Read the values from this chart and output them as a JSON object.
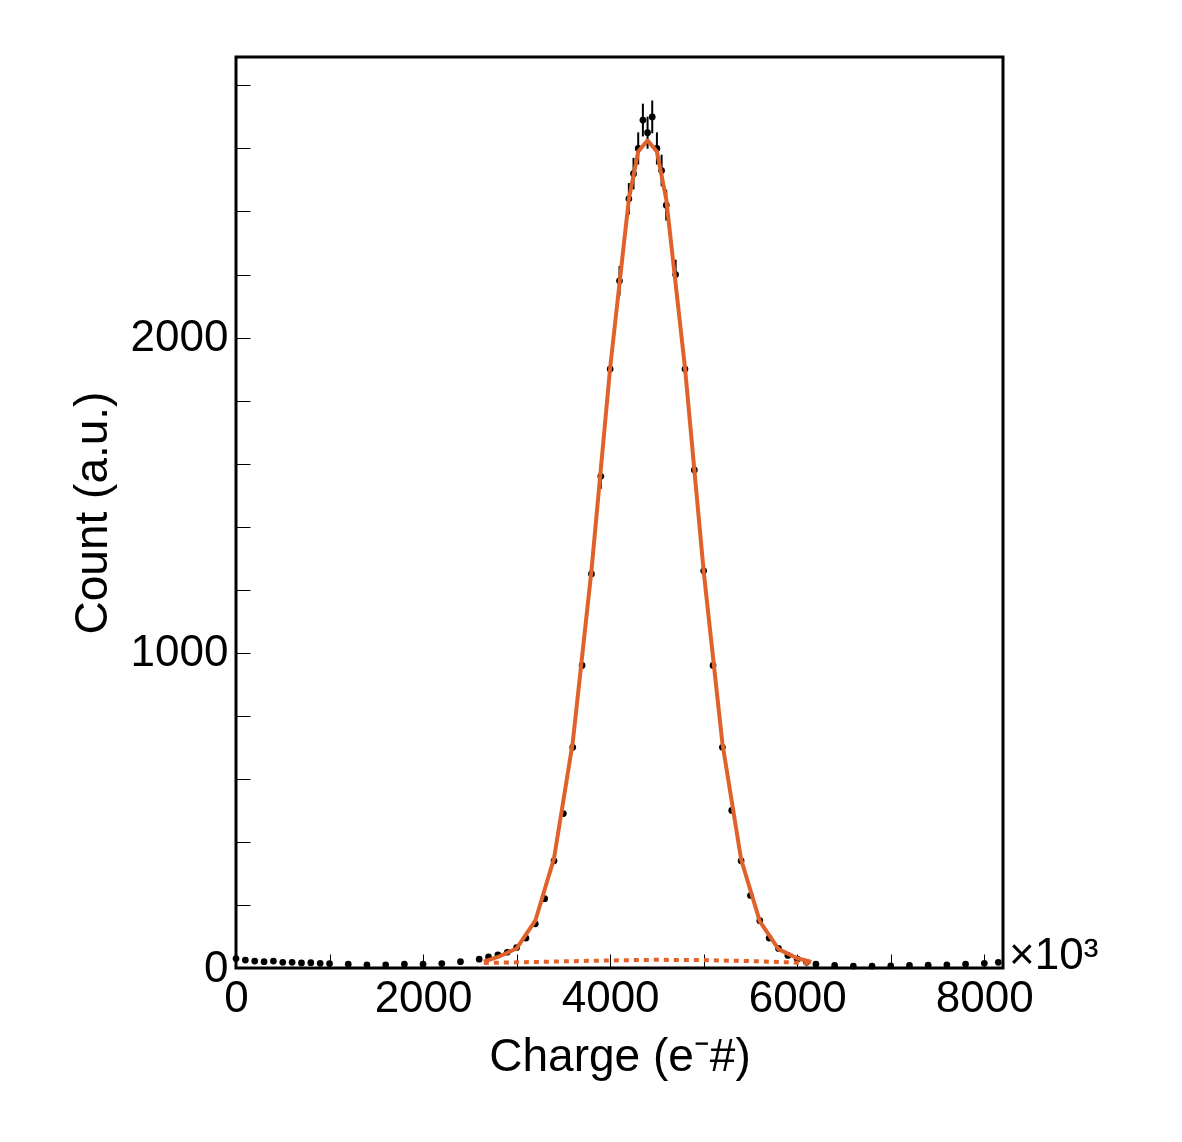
{
  "chart_data": {
    "type": "scatter",
    "xlabel": "Charge (e⁻#)",
    "ylabel": "Count (a.u.)",
    "xlim": [
      0,
      8200
    ],
    "ylim": [
      0,
      2890
    ],
    "xticks": [
      0,
      {
        "value": 1000,
        "label": null
      },
      2000,
      {
        "value": 3000,
        "label": null
      },
      4000,
      {
        "value": 5000,
        "label": null
      },
      6000,
      {
        "value": 7000,
        "label": null
      },
      8000
    ],
    "yticks": [
      0,
      {
        "value": 200,
        "label": null
      },
      {
        "value": 400,
        "label": null
      },
      {
        "value": 600,
        "label": null
      },
      {
        "value": 800,
        "label": null
      },
      1000,
      {
        "value": 1200,
        "label": null
      },
      {
        "value": 1400,
        "label": null
      },
      {
        "value": 1600,
        "label": null
      },
      {
        "value": 1800,
        "label": null
      },
      2000,
      {
        "value": 2200,
        "label": null
      },
      {
        "value": 2400,
        "label": null
      },
      {
        "value": 2600,
        "label": null
      },
      {
        "value": 2800,
        "label": null
      }
    ],
    "annotations": [
      {
        "text": "×10³",
        "x": 8200,
        "y": 0
      }
    ],
    "grid": false,
    "series": [
      {
        "color": "#000000",
        "marker": "circle",
        "x": [
          0,
          100,
          200,
          300,
          400,
          500,
          600,
          700,
          800,
          900,
          1000,
          1200,
          1400,
          1600,
          1800,
          2000,
          2200,
          2400,
          2600,
          2700,
          2800,
          2900,
          3000,
          3100,
          3200,
          3300,
          3400,
          3500,
          3600,
          3700,
          3800,
          3900,
          4000,
          4100,
          4200,
          4250,
          4300,
          4350,
          4400,
          4450,
          4500,
          4550,
          4600,
          4700,
          4800,
          4900,
          5000,
          5100,
          5200,
          5300,
          5400,
          5500,
          5600,
          5700,
          5800,
          5900,
          6000,
          6100,
          6200,
          6400,
          6600,
          6800,
          7000,
          7200,
          7400,
          7600,
          7800,
          8000,
          8150
        ],
        "values": [
          30,
          25,
          22,
          20,
          22,
          18,
          18,
          16,
          17,
          15,
          14,
          12,
          10,
          10,
          12,
          12,
          14,
          20,
          28,
          35,
          42,
          50,
          65,
          95,
          140,
          220,
          340,
          490,
          700,
          960,
          1250,
          1560,
          1900,
          2180,
          2440,
          2520,
          2600,
          2690,
          2650,
          2700,
          2600,
          2530,
          2420,
          2200,
          1900,
          1580,
          1260,
          960,
          700,
          500,
          340,
          230,
          150,
          95,
          62,
          40,
          28,
          18,
          12,
          8,
          6,
          6,
          7,
          8,
          9,
          10,
          12,
          15,
          18
        ],
        "errors": [
          null,
          null,
          null,
          null,
          null,
          null,
          null,
          null,
          null,
          null,
          null,
          null,
          null,
          null,
          null,
          null,
          null,
          null,
          null,
          null,
          null,
          null,
          null,
          null,
          null,
          null,
          null,
          null,
          null,
          null,
          null,
          40,
          null,
          47,
          50,
          50,
          51,
          52,
          51,
          52,
          51,
          50,
          49,
          47,
          null,
          null,
          null,
          null,
          null,
          null,
          null,
          null,
          null,
          null,
          null,
          null,
          null,
          null,
          null,
          null,
          null,
          null,
          null,
          null,
          null,
          null,
          null,
          null,
          null
        ]
      },
      {
        "type": "line",
        "color": "#e0622a",
        "line_style": "solid",
        "marker": "none",
        "x": [
          2650,
          2800,
          3000,
          3200,
          3400,
          3600,
          3800,
          4000,
          4200,
          4300,
          4400,
          4500,
          4600,
          4800,
          5000,
          5200,
          5400,
          5600,
          5800,
          6000,
          6150
        ],
        "values": [
          20,
          35,
          62,
          150,
          348,
          715,
          1260,
          1904,
          2439,
          2590,
          2625,
          2590,
          2438,
          1904,
          1258,
          713,
          345,
          148,
          60,
          31,
          19
        ]
      },
      {
        "type": "line",
        "color": "#e0622a",
        "line_style": "dotted",
        "marker": "none",
        "x": [
          2650,
          3000,
          3500,
          4000,
          4500,
          5000,
          5500,
          6000,
          6150
        ],
        "values": [
          16,
          18,
          21,
          24,
          26,
          25,
          22,
          17,
          15
        ]
      }
    ]
  }
}
